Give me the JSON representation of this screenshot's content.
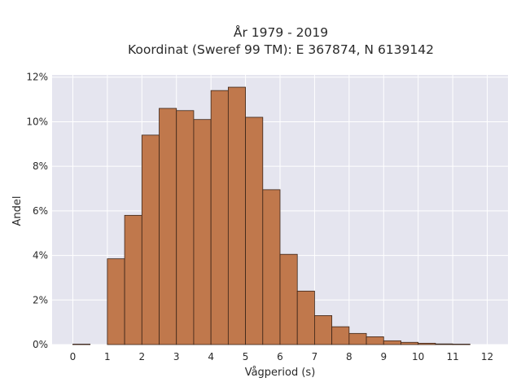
{
  "chart_data": {
    "type": "bar",
    "title_line1": "År 1979 - 2019",
    "title_line2": "Koordinat (Sweref 99 TM): E 367874, N 6139142",
    "xlabel": "Vågperiod (s)",
    "ylabel": "Andel",
    "xlim": [
      -0.6,
      12.6
    ],
    "ylim": [
      0,
      12.1
    ],
    "x_ticks": [
      0,
      1,
      2,
      3,
      4,
      5,
      6,
      7,
      8,
      9,
      10,
      11,
      12
    ],
    "y_ticks": [
      "0%",
      "2%",
      "4%",
      "6%",
      "8%",
      "10%",
      "12%"
    ],
    "y_tick_values": [
      0,
      2,
      4,
      6,
      8,
      10,
      12
    ],
    "grid": true,
    "bar_color": "#c0784c",
    "bin_width": 0.5,
    "bins": [
      {
        "x0": 0.0,
        "value": 0.02
      },
      {
        "x0": 1.0,
        "value": 3.85
      },
      {
        "x0": 1.5,
        "value": 5.8
      },
      {
        "x0": 2.0,
        "value": 9.4
      },
      {
        "x0": 2.5,
        "value": 10.6
      },
      {
        "x0": 3.0,
        "value": 10.5
      },
      {
        "x0": 3.5,
        "value": 10.1
      },
      {
        "x0": 4.0,
        "value": 11.4
      },
      {
        "x0": 4.5,
        "value": 11.55
      },
      {
        "x0": 5.0,
        "value": 10.2
      },
      {
        "x0": 5.5,
        "value": 6.95
      },
      {
        "x0": 6.0,
        "value": 4.05
      },
      {
        "x0": 6.5,
        "value": 2.4
      },
      {
        "x0": 7.0,
        "value": 1.3
      },
      {
        "x0": 7.5,
        "value": 0.8
      },
      {
        "x0": 8.0,
        "value": 0.5
      },
      {
        "x0": 8.5,
        "value": 0.35
      },
      {
        "x0": 9.0,
        "value": 0.17
      },
      {
        "x0": 9.5,
        "value": 0.1
      },
      {
        "x0": 10.0,
        "value": 0.06
      },
      {
        "x0": 10.5,
        "value": 0.03
      },
      {
        "x0": 11.0,
        "value": 0.02
      }
    ]
  }
}
